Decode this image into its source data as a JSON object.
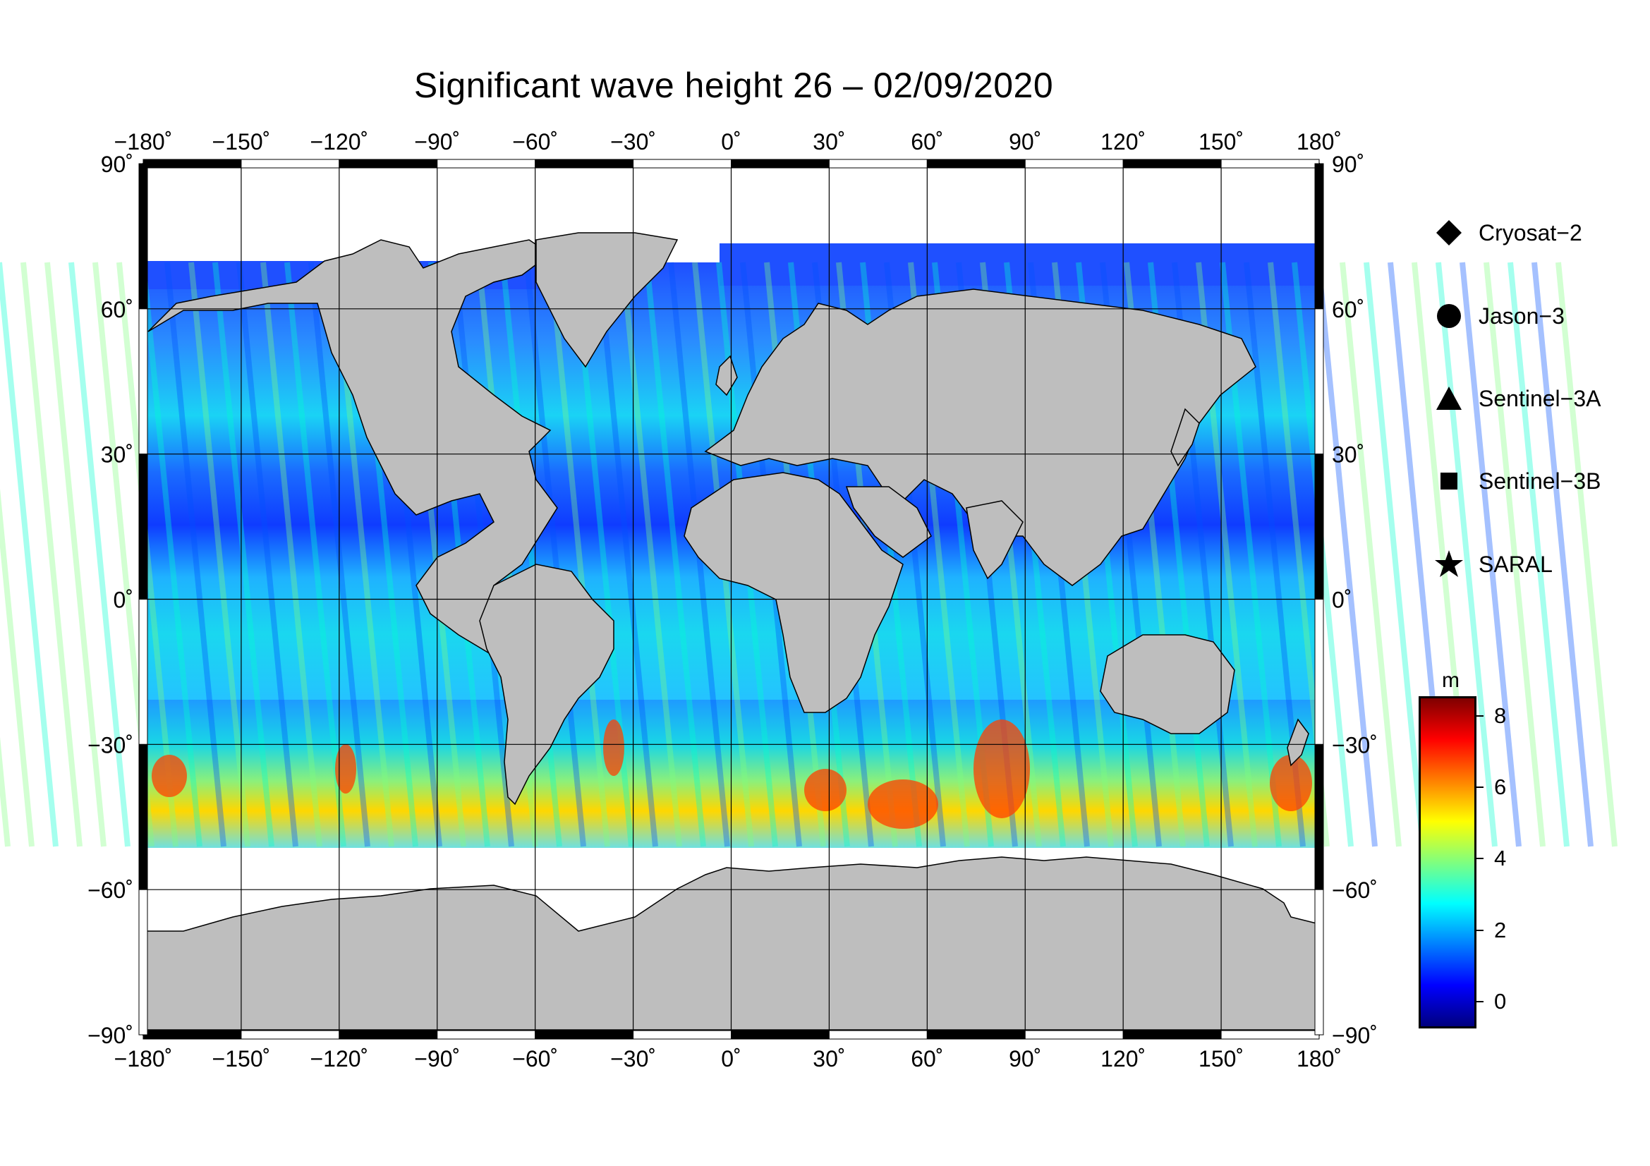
{
  "title": "Significant wave height 26 – 02/09/2020",
  "map": {
    "projection": "plate carree",
    "lon_range": [
      -180,
      180
    ],
    "lat_range": [
      -90,
      90
    ],
    "lon_ticks": [
      "−180˚",
      "−150˚",
      "−120˚",
      "−90˚",
      "−60˚",
      "−30˚",
      "0˚",
      "30˚",
      "60˚",
      "90˚",
      "120˚",
      "150˚",
      "180˚"
    ],
    "lat_ticks_left": [
      "90˚",
      "60˚",
      "30˚",
      "0˚",
      "−30˚",
      "−60˚",
      "−90˚"
    ],
    "lat_ticks_right": [
      "90˚",
      "60˚",
      "30˚",
      "0˚",
      "−30˚",
      "−60˚",
      "−90˚"
    ],
    "grid": true,
    "land_color": "#bebebe",
    "no_data_color": "#ffffff"
  },
  "legend": {
    "items": [
      {
        "label": "Cryosat−2",
        "symbol": "diamond-icon"
      },
      {
        "label": "Jason−3",
        "symbol": "circle-icon"
      },
      {
        "label": "Sentinel−3A",
        "symbol": "triangle-icon"
      },
      {
        "label": "Sentinel−3B",
        "symbol": "square-icon"
      },
      {
        "label": "SARAL",
        "symbol": "star-icon"
      }
    ]
  },
  "colorbar": {
    "unit": "m",
    "min": -0.7,
    "max": 8.5,
    "ticks": [
      "0",
      "2",
      "4",
      "6",
      "8"
    ],
    "colors": [
      "#00007f",
      "#0000ff",
      "#007fff",
      "#00ffff",
      "#7fff7f",
      "#ffff00",
      "#ff7f00",
      "#ff0000",
      "#7f0000"
    ]
  }
}
